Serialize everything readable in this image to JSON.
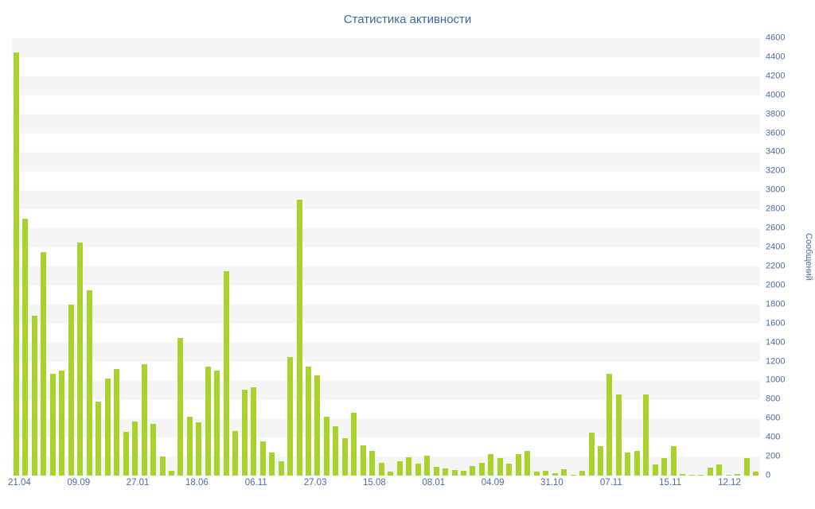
{
  "page": {
    "title": "Статистика активности"
  },
  "chart_data": {
    "type": "bar",
    "title": "Статистика активности",
    "xlabel": "",
    "ylabel": "Сообщений",
    "ylim": [
      0,
      4600
    ],
    "y_tick_step": 200,
    "y_axis_position": "right",
    "grid": "striped-horizontal-bands",
    "legend": "none",
    "bar_color": "#a9d32c",
    "axis_text_color": "#4a6d9b",
    "title_color": "#3c6a9e",
    "stripe_color": "#f5f5f5",
    "y_ticks": [
      0,
      200,
      400,
      600,
      800,
      1000,
      1200,
      1400,
      1600,
      1800,
      2000,
      2200,
      2400,
      2600,
      2800,
      3000,
      3200,
      3400,
      3600,
      3800,
      4000,
      4200,
      4400,
      4600
    ],
    "x_tick_labels": [
      "21.04",
      "09.09",
      "27.01",
      "18.06",
      "06.11",
      "27.03",
      "15.08",
      "08.01",
      "04.09",
      "31.10",
      "07.11",
      "15.11",
      "12.12"
    ],
    "values": [
      4450,
      2700,
      1680,
      2350,
      1070,
      1100,
      1800,
      2450,
      1950,
      780,
      1020,
      1120,
      460,
      570,
      1170,
      540,
      200,
      50,
      1450,
      620,
      560,
      1150,
      1100,
      2150,
      470,
      900,
      930,
      360,
      240,
      150,
      1250,
      2900,
      1150,
      1050,
      620,
      520,
      390,
      660,
      320,
      260,
      130,
      40,
      150,
      190,
      125,
      210,
      90,
      75,
      60,
      50,
      100,
      130,
      230,
      180,
      125,
      230,
      260,
      40,
      50,
      25,
      70,
      10,
      50,
      450,
      310,
      1070,
      850,
      240,
      260,
      850,
      120,
      180,
      310,
      20,
      10,
      10,
      80,
      120,
      10,
      20,
      180,
      40
    ]
  }
}
